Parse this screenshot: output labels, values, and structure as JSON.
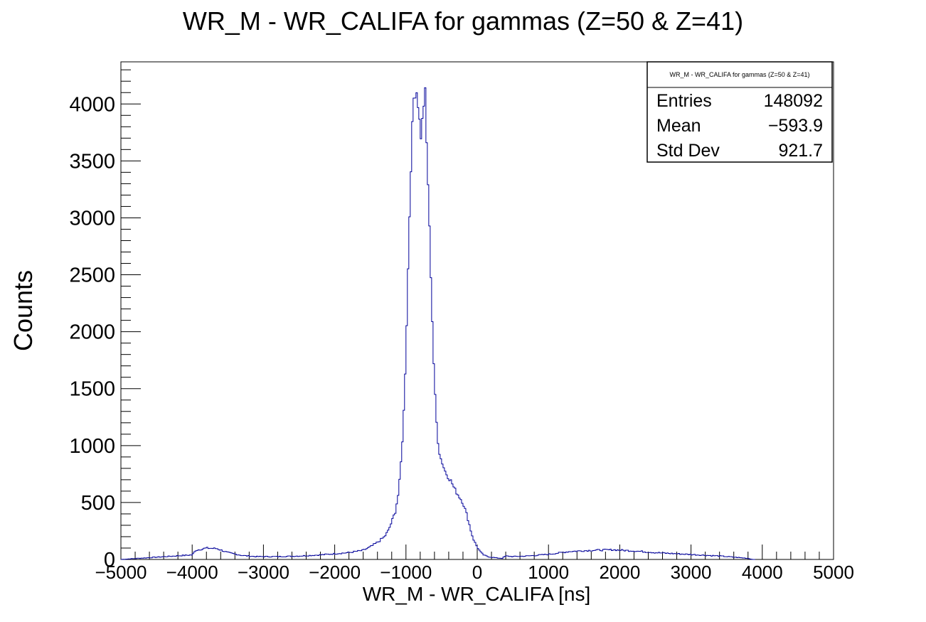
{
  "chart_data": {
    "type": "histogram",
    "title": "WR_M - WR_CALIFA for gammas (Z=50 & Z=41)",
    "xlabel": "WR_M - WR_CALIFA [ns]",
    "ylabel": "Counts",
    "xlim": [
      -5000,
      5000
    ],
    "ylim": [
      0,
      4370
    ],
    "x_ticks": [
      -5000,
      -4000,
      -3000,
      -2000,
      -1000,
      0,
      1000,
      2000,
      3000,
      4000,
      5000
    ],
    "x_tick_labels": [
      "−5000",
      "−4000",
      "−3000",
      "−2000",
      "−1000",
      "0",
      "1000",
      "2000",
      "3000",
      "4000",
      "5000"
    ],
    "y_ticks": [
      0,
      500,
      1000,
      1500,
      2000,
      2500,
      3000,
      3500,
      4000
    ],
    "y_tick_labels": [
      "0",
      "500",
      "1000",
      "1500",
      "2000",
      "2500",
      "3000",
      "3500",
      "4000"
    ],
    "line_color": "#000099",
    "series": [
      {
        "x": [
          -5000,
          -4000,
          -3950,
          -3800,
          -3650,
          -3500,
          -3300,
          -3100,
          -2800,
          -2500,
          -2200,
          -2000,
          -1800,
          -1600,
          -1500,
          -1400,
          -1300,
          -1250,
          -1200,
          -1150,
          -1100,
          -1070,
          -1040,
          -1020,
          -1000,
          -980,
          -960,
          -940,
          -920,
          -900,
          -880,
          -860,
          -840,
          -830,
          -820,
          -810,
          -800,
          -790,
          -780,
          -770,
          -760,
          -750,
          -740,
          -730,
          -720,
          -700,
          -680,
          -660,
          -640,
          -620,
          -600,
          -580,
          -560,
          -540,
          -520,
          -500,
          -480,
          -460,
          -440,
          -420,
          -400,
          -380,
          -360,
          -340,
          -320,
          -300,
          -280,
          -260,
          -240,
          -220,
          -200,
          -180,
          -160,
          -140,
          -120,
          -100,
          -80,
          -60,
          -40,
          -20,
          0,
          20,
          40,
          60,
          80,
          100,
          150,
          200,
          250,
          300,
          350,
          400,
          500,
          700,
          1000,
          1300,
          1600,
          1900,
          2200,
          2500,
          2800,
          3100,
          3400,
          3600,
          3800,
          3860,
          3900,
          5000
        ],
        "y": [
          0,
          40,
          80,
          100,
          95,
          60,
          35,
          25,
          25,
          30,
          40,
          50,
          60,
          80,
          110,
          150,
          200,
          250,
          330,
          420,
          600,
          850,
          1150,
          1450,
          1850,
          2300,
          2800,
          3250,
          3650,
          3950,
          4150,
          4050,
          4170,
          4000,
          3900,
          3850,
          3780,
          3720,
          3800,
          3850,
          3900,
          4000,
          4130,
          4100,
          3800,
          3500,
          3100,
          2700,
          2300,
          1900,
          1550,
          1300,
          1100,
          980,
          900,
          870,
          830,
          790,
          760,
          740,
          720,
          700,
          680,
          650,
          620,
          600,
          580,
          560,
          540,
          520,
          500,
          460,
          420,
          380,
          330,
          280,
          230,
          190,
          160,
          130,
          110,
          90,
          70,
          55,
          45,
          35,
          25,
          20,
          15,
          12,
          10,
          30,
          25,
          30,
          45,
          70,
          80,
          85,
          75,
          60,
          50,
          40,
          30,
          20,
          10,
          0,
          0
        ]
      }
    ]
  },
  "stats": {
    "title": "WR_M - WR_CALIFA for gammas (Z=50 & Z=41)",
    "rows": [
      {
        "label": "Entries",
        "value": "148092"
      },
      {
        "label": "Mean",
        "value": "−593.9"
      },
      {
        "label": "Std Dev",
        "value": "921.7"
      }
    ]
  }
}
